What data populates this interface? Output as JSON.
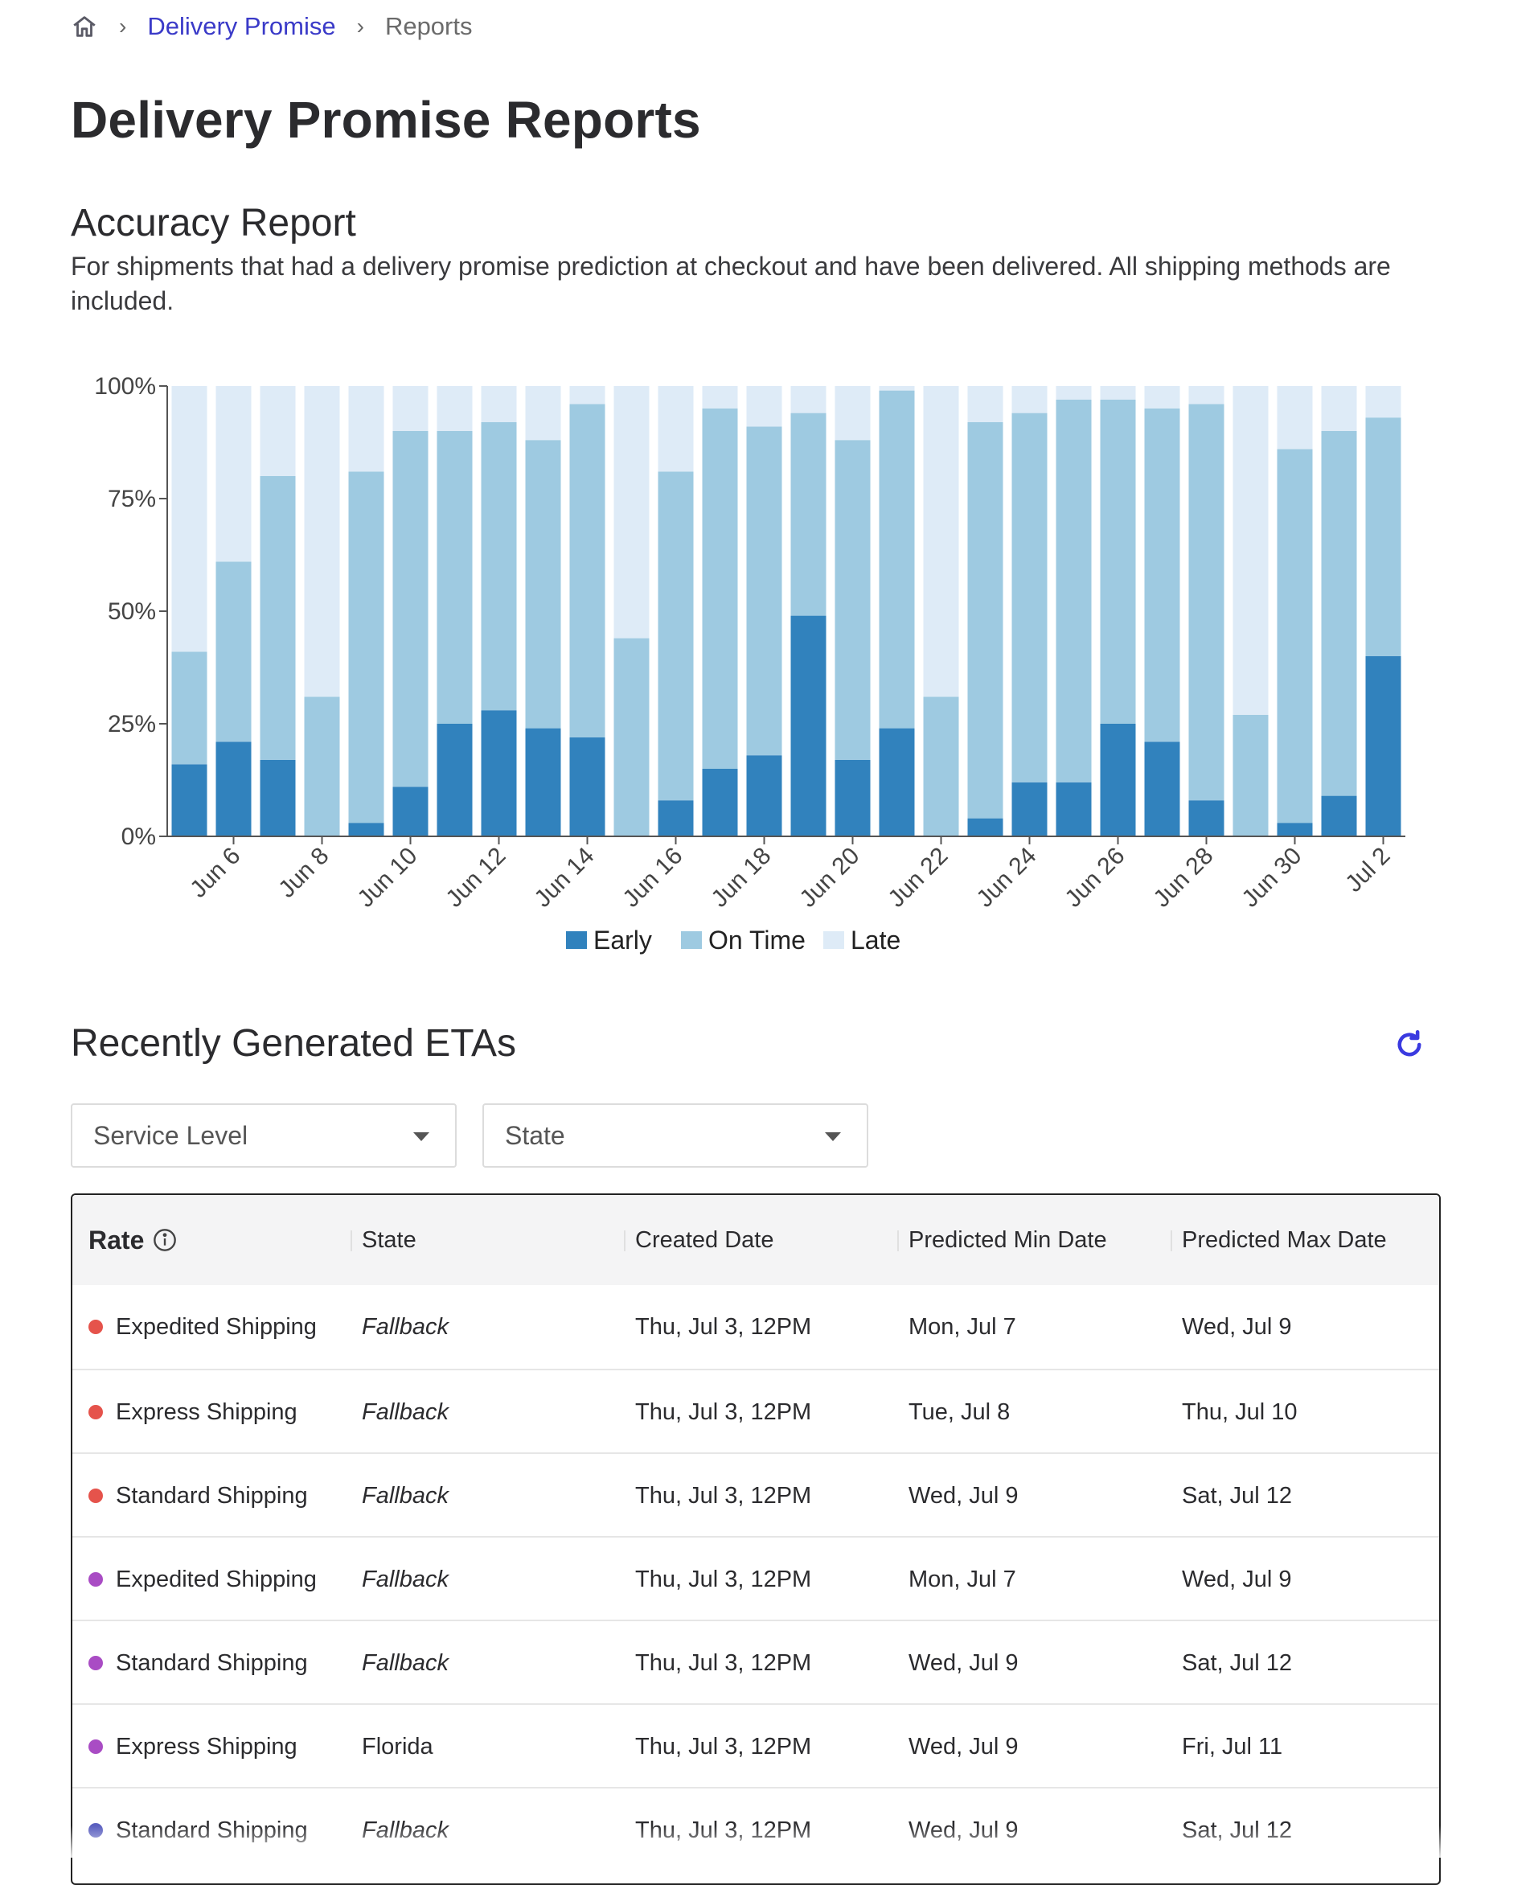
{
  "breadcrumb": {
    "items": [
      "Delivery Promise",
      "Reports"
    ]
  },
  "page_title": "Delivery Promise Reports",
  "accuracy": {
    "title": "Accuracy Report",
    "description": "For shipments that had a delivery promise prediction at checkout and have been delivered. All shipping methods are included."
  },
  "colors": {
    "early": "#3182bd",
    "on_time": "#9ecae1",
    "late": "#deebf7",
    "link": "#3a3ac8",
    "refresh": "#3a3ae0"
  },
  "chart_data": {
    "type": "bar",
    "stacked": true,
    "categories": [
      "Jun 5",
      "Jun 6",
      "Jun 7",
      "Jun 8",
      "Jun 9",
      "Jun 10",
      "Jun 11",
      "Jun 12",
      "Jun 13",
      "Jun 14",
      "Jun 15",
      "Jun 16",
      "Jun 17",
      "Jun 18",
      "Jun 19",
      "Jun 20",
      "Jun 21",
      "Jun 22",
      "Jun 23",
      "Jun 24",
      "Jun 25",
      "Jun 26",
      "Jun 27",
      "Jun 28",
      "Jun 29",
      "Jun 30",
      "Jul 1",
      "Jul 2"
    ],
    "tick_labels": [
      "Jun 6",
      "Jun 8",
      "Jun 10",
      "Jun 12",
      "Jun 14",
      "Jun 16",
      "Jun 18",
      "Jun 20",
      "Jun 22",
      "Jun 24",
      "Jun 26",
      "Jun 28",
      "Jun 30",
      "Jul 2"
    ],
    "series": [
      {
        "name": "Early",
        "values": [
          16,
          21,
          17,
          0,
          3,
          11,
          25,
          28,
          24,
          22,
          0,
          8,
          15,
          18,
          49,
          17,
          24,
          0,
          4,
          12,
          12,
          25,
          21,
          8,
          0,
          3,
          9,
          40
        ]
      },
      {
        "name": "On Time",
        "values": [
          25,
          40,
          63,
          31,
          78,
          79,
          65,
          64,
          64,
          74,
          44,
          73,
          80,
          73,
          45,
          71,
          75,
          31,
          88,
          82,
          85,
          72,
          74,
          88,
          27,
          83,
          81,
          53
        ]
      },
      {
        "name": "Late",
        "values": [
          59,
          39,
          20,
          69,
          19,
          10,
          10,
          8,
          12,
          4,
          56,
          19,
          5,
          9,
          6,
          12,
          1,
          69,
          8,
          6,
          3,
          3,
          5,
          4,
          73,
          14,
          10,
          7
        ]
      }
    ],
    "yticks": [
      "0%",
      "25%",
      "50%",
      "75%",
      "100%"
    ],
    "ylim": [
      0,
      100
    ],
    "legend": [
      "Early",
      "On Time",
      "Late"
    ],
    "legend_position": "bottom"
  },
  "etas": {
    "title": "Recently Generated ETAs",
    "filters": {
      "service_level": "Service Level",
      "state": "State"
    },
    "columns": [
      "Rate",
      "State",
      "Created Date",
      "Predicted Min Date",
      "Predicted Max Date"
    ],
    "rows": [
      {
        "dot": "#e5534b",
        "rate": "Expedited Shipping",
        "state": "Fallback",
        "italic": true,
        "created": "Thu, Jul 3, 12PM",
        "min": "Mon, Jul 7",
        "max": "Wed, Jul 9"
      },
      {
        "dot": "#e5534b",
        "rate": "Express Shipping",
        "state": "Fallback",
        "italic": true,
        "created": "Thu, Jul 3, 12PM",
        "min": "Tue, Jul 8",
        "max": "Thu, Jul 10"
      },
      {
        "dot": "#e5534b",
        "rate": "Standard Shipping",
        "state": "Fallback",
        "italic": true,
        "created": "Thu, Jul 3, 12PM",
        "min": "Wed, Jul 9",
        "max": "Sat, Jul 12"
      },
      {
        "dot": "#a94cc4",
        "rate": "Expedited Shipping",
        "state": "Fallback",
        "italic": true,
        "created": "Thu, Jul 3, 12PM",
        "min": "Mon, Jul 7",
        "max": "Wed, Jul 9"
      },
      {
        "dot": "#a94cc4",
        "rate": "Standard Shipping",
        "state": "Fallback",
        "italic": true,
        "created": "Thu, Jul 3, 12PM",
        "min": "Wed, Jul 9",
        "max": "Sat, Jul 12"
      },
      {
        "dot": "#a94cc4",
        "rate": "Express Shipping",
        "state": "Florida",
        "italic": false,
        "created": "Thu, Jul 3, 12PM",
        "min": "Wed, Jul 9",
        "max": "Fri, Jul 11"
      },
      {
        "dot": "#5a5fbf",
        "rate": "Standard Shipping",
        "state": "Fallback",
        "italic": true,
        "created": "Thu, Jul 3, 12PM",
        "min": "Wed, Jul 9",
        "max": "Sat, Jul 12"
      }
    ]
  }
}
